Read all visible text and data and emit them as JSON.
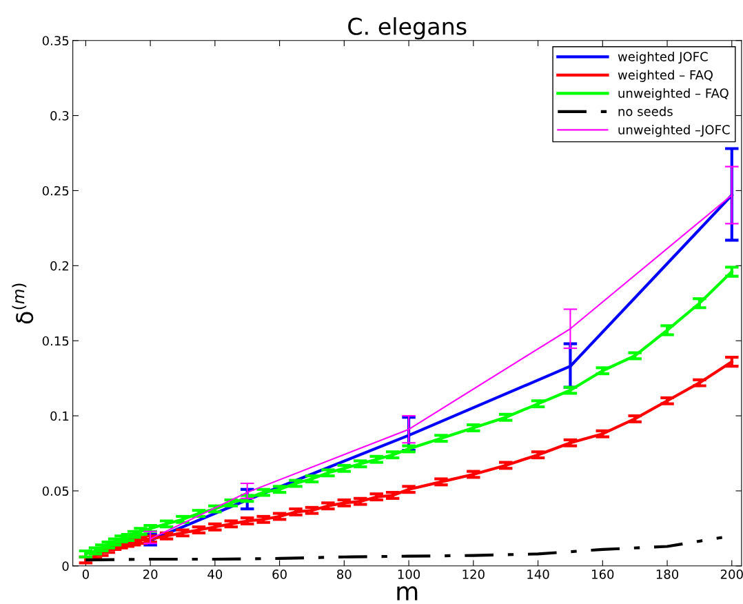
{
  "chart_data": {
    "type": "line",
    "title": "C. elegans",
    "xlabel": "m",
    "ylabel": "δ$^{(m)}$",
    "xlim": [
      -4,
      203
    ],
    "xticks": [
      0,
      20,
      40,
      60,
      80,
      100,
      120,
      140,
      160,
      180,
      200
    ],
    "ylim": [
      0,
      0.35
    ],
    "yticks": [
      0,
      0.05,
      0.1,
      0.15,
      0.2,
      0.25,
      0.3,
      0.35
    ],
    "grid": false,
    "legend": "top right",
    "marker": "none",
    "series": [
      {
        "name": "weighted JOFC",
        "color": "#0000ff",
        "line_style": "solid",
        "x": [
          20,
          50,
          100,
          150,
          200
        ],
        "values": [
          0.017,
          0.044,
          0.087,
          0.133,
          0.247
        ],
        "errors": [
          [
            0.014,
            0.021
          ],
          [
            0.038,
            0.051
          ],
          [
            0.077,
            0.099
          ],
          [
            0.119,
            0.148
          ],
          [
            0.217,
            0.278
          ]
        ]
      },
      {
        "name": "weighted – FAQ",
        "color": "#ff0000",
        "line_style": "solid",
        "x": [
          0,
          3,
          5,
          7,
          9,
          11,
          13,
          15,
          17,
          20,
          25,
          30,
          35,
          40,
          45,
          50,
          55,
          60,
          65,
          70,
          75,
          80,
          85,
          90,
          95,
          100,
          110,
          120,
          130,
          140,
          150,
          160,
          170,
          180,
          190,
          200
        ],
        "values": [
          0.004,
          0.007,
          0.009,
          0.011,
          0.013,
          0.014,
          0.015,
          0.016,
          0.017,
          0.018,
          0.02,
          0.022,
          0.024,
          0.026,
          0.028,
          0.03,
          0.031,
          0.033,
          0.036,
          0.037,
          0.04,
          0.042,
          0.043,
          0.046,
          0.047,
          0.051,
          0.056,
          0.061,
          0.067,
          0.074,
          0.082,
          0.088,
          0.098,
          0.11,
          0.122,
          0.136
        ],
        "errors": [
          0.002,
          0.002,
          0.002,
          0.002,
          0.002,
          0.002,
          0.002,
          0.002,
          0.002,
          0.002,
          0.002,
          0.002,
          0.002,
          0.002,
          0.002,
          0.002,
          0.002,
          0.002,
          0.002,
          0.002,
          0.002,
          0.002,
          0.002,
          0.002,
          0.002,
          0.002,
          0.002,
          0.002,
          0.002,
          0.002,
          0.002,
          0.002,
          0.002,
          0.002,
          0.002,
          0.003
        ]
      },
      {
        "name": "unweighted – FAQ",
        "color": "#00ff00",
        "line_style": "solid",
        "x": [
          0,
          3,
          5,
          7,
          9,
          11,
          13,
          15,
          17,
          20,
          25,
          30,
          35,
          40,
          45,
          50,
          55,
          60,
          65,
          70,
          75,
          80,
          85,
          90,
          95,
          100,
          110,
          120,
          130,
          140,
          150,
          160,
          170,
          180,
          190,
          200
        ],
        "values": [
          0.008,
          0.01,
          0.012,
          0.014,
          0.016,
          0.018,
          0.019,
          0.021,
          0.023,
          0.025,
          0.028,
          0.031,
          0.035,
          0.038,
          0.042,
          0.045,
          0.049,
          0.051,
          0.055,
          0.058,
          0.062,
          0.065,
          0.068,
          0.071,
          0.074,
          0.078,
          0.085,
          0.092,
          0.099,
          0.108,
          0.117,
          0.13,
          0.14,
          0.157,
          0.175,
          0.196
        ],
        "errors": [
          0.002,
          0.002,
          0.002,
          0.002,
          0.002,
          0.002,
          0.002,
          0.002,
          0.002,
          0.002,
          0.002,
          0.002,
          0.002,
          0.002,
          0.002,
          0.002,
          0.002,
          0.002,
          0.002,
          0.002,
          0.002,
          0.002,
          0.002,
          0.002,
          0.002,
          0.002,
          0.002,
          0.002,
          0.002,
          0.002,
          0.002,
          0.002,
          0.002,
          0.003,
          0.003,
          0.003
        ]
      },
      {
        "name": "no seeds",
        "color": "#000000",
        "line_style": "dashdot",
        "x": [
          0,
          20,
          40,
          60,
          80,
          100,
          120,
          140,
          160,
          180,
          197
        ],
        "values": [
          0.004,
          0.0045,
          0.0045,
          0.005,
          0.006,
          0.0065,
          0.007,
          0.008,
          0.011,
          0.013,
          0.019
        ]
      },
      {
        "name": "unweighted –JOFC",
        "color": "#ff00ff",
        "line_style": "solid",
        "x": [
          20,
          50,
          100,
          150,
          200
        ],
        "values": [
          0.018,
          0.049,
          0.091,
          0.158,
          0.247
        ],
        "errors": [
          [
            0.015,
            0.023
          ],
          [
            0.045,
            0.055
          ],
          [
            0.082,
            0.1
          ],
          [
            0.145,
            0.171
          ],
          [
            0.228,
            0.266
          ]
        ]
      }
    ]
  }
}
